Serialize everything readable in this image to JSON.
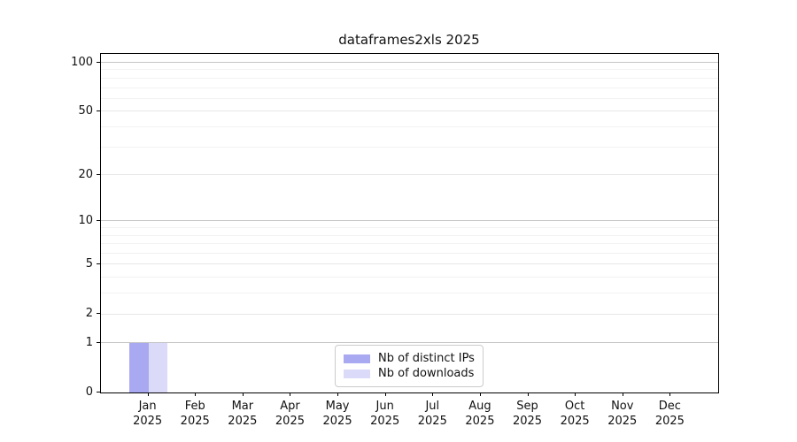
{
  "title": "dataframes2xls 2025",
  "chart_data": {
    "type": "bar",
    "title": "dataframes2xls 2025",
    "categories": [
      "Jan 2025",
      "Feb 2025",
      "Mar 2025",
      "Apr 2025",
      "May 2025",
      "Jun 2025",
      "Jul 2025",
      "Aug 2025",
      "Sep 2025",
      "Oct 2025",
      "Nov 2025",
      "Dec 2025"
    ],
    "x_tick_line1": [
      "Jan",
      "Feb",
      "Mar",
      "Apr",
      "May",
      "Jun",
      "Jul",
      "Aug",
      "Sep",
      "Oct",
      "Nov",
      "Dec"
    ],
    "x_tick_line2": "2025",
    "series": [
      {
        "name": "Nb of distinct IPs",
        "color": "#a9a9f1",
        "values": [
          1,
          0,
          0,
          0,
          0,
          0,
          0,
          0,
          0,
          0,
          0,
          0
        ]
      },
      {
        "name": "Nb of downloads",
        "color": "#dbdbf9",
        "values": [
          1,
          0,
          0,
          0,
          0,
          0,
          0,
          0,
          0,
          0,
          0,
          0
        ]
      }
    ],
    "yscale": "log1p",
    "ylim": [
      0,
      113
    ],
    "y_ticks": [
      0,
      1,
      2,
      5,
      10,
      20,
      50,
      100
    ],
    "y_major_ticks": [
      1,
      10,
      100
    ],
    "y_minor_ticks": [
      3,
      4,
      6,
      7,
      8,
      9,
      30,
      40,
      60,
      70,
      80,
      90
    ],
    "grid": "horizontal",
    "legend_position": "lower center",
    "colors": {
      "grid_major": "#c6c6c6",
      "grid_mid": "#e7e7e7",
      "grid_minor": "#f2f2f2",
      "spine": "#000000",
      "background": "#ffffff"
    }
  }
}
